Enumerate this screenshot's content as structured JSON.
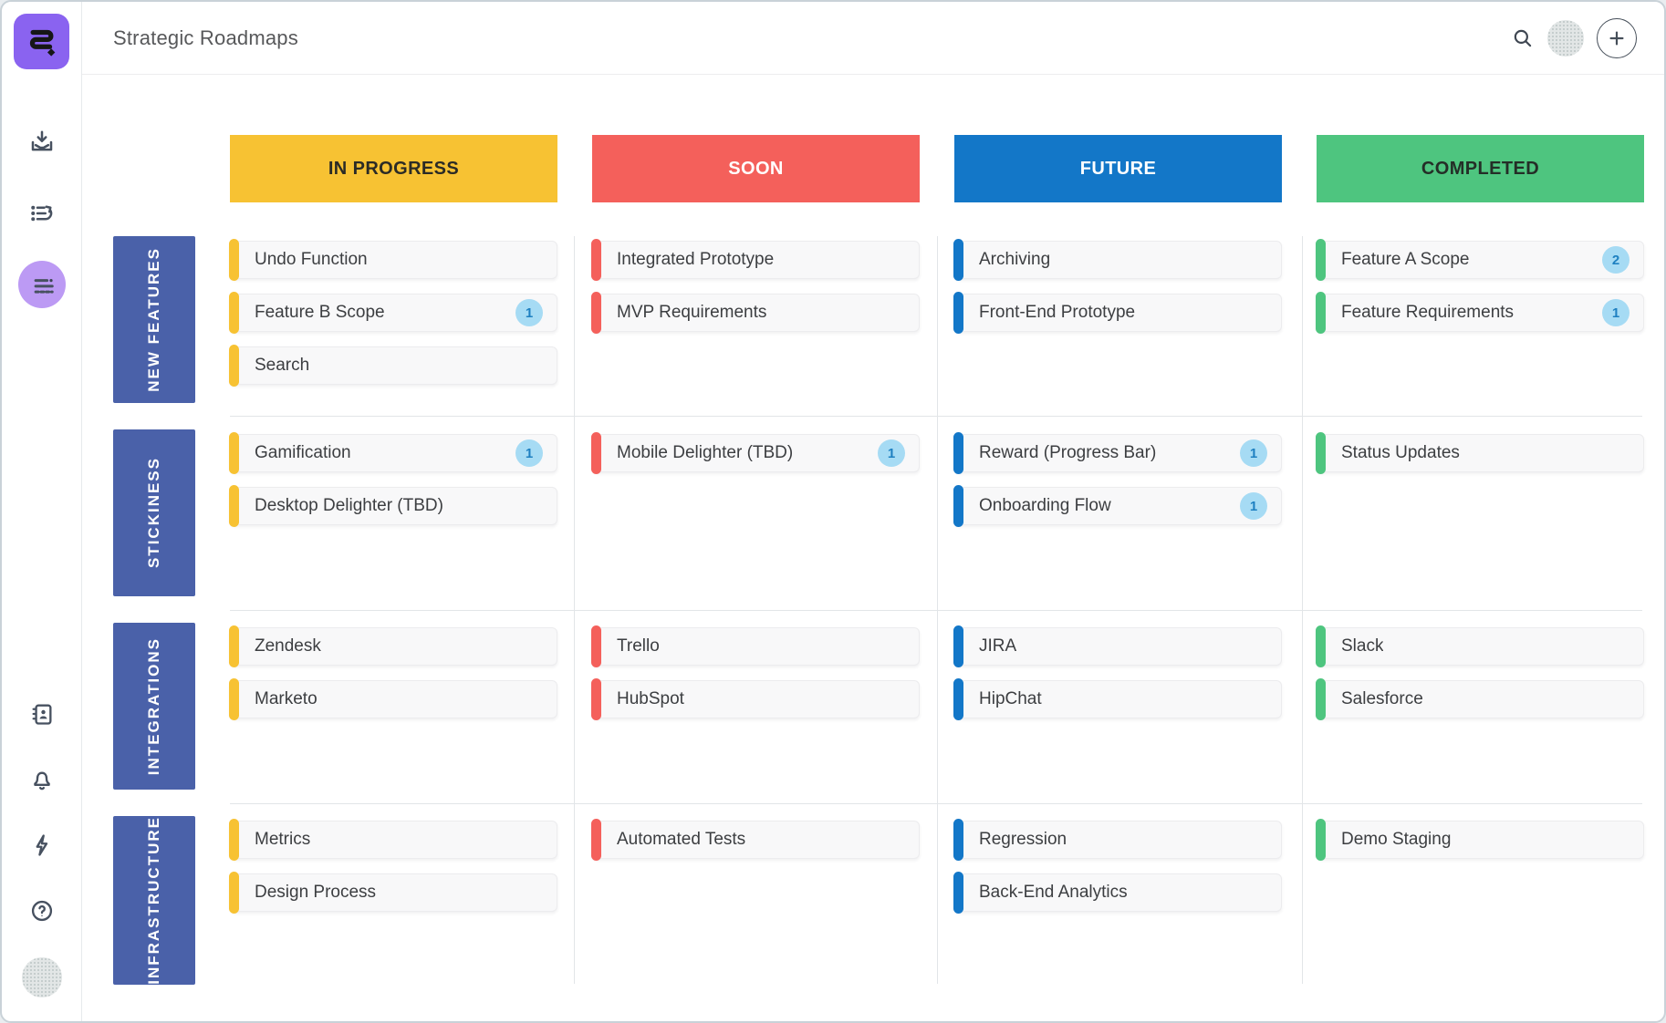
{
  "window": {
    "title": "Strategic Roadmaps"
  },
  "topbar": {
    "icons": [
      "search-icon",
      "user-avatar",
      "add-new-button"
    ]
  },
  "sidebar": {
    "top_icons": [
      "app-logo",
      "import-tray-icon",
      "backlog-list-icon",
      "roadmap-items-icon"
    ],
    "bottom_icons": [
      "contacts-icon",
      "notifications-bell-icon",
      "activity-bolt-icon",
      "help-icon",
      "user-avatar"
    ]
  },
  "colors": {
    "logo-purple": "#8A63F0",
    "active-purple": "#BC9AF4",
    "label-blue": "#4A61A9",
    "badge-bg": "#A6DBF4",
    "badge-text": "#1E80C1",
    "icon": "#475160",
    "card-bg": "#F8F8F9",
    "card-border": "#ECECEE",
    "card-text": "#3C3E41",
    "divider": "#E2E5E8",
    "title": "#57585A"
  },
  "board": {
    "columns": [
      {
        "label": "IN PROGRESS",
        "color": "#F7C233",
        "text": "#2B2B26"
      },
      {
        "label": "SOON",
        "color": "#F4605B",
        "text": "#FFFFFF"
      },
      {
        "label": "FUTURE",
        "color": "#1377C8",
        "text": "#FFFFFF"
      },
      {
        "label": "COMPLETED",
        "color": "#4EC57F",
        "text": "#242E27"
      }
    ],
    "rows": [
      {
        "label": "NEW FEATURES",
        "cells": [
          [
            {
              "title": "Undo Function"
            },
            {
              "title": "Feature B Scope",
              "badge": 1
            },
            {
              "title": "Search"
            }
          ],
          [
            {
              "title": "Integrated Prototype"
            },
            {
              "title": "MVP Requirements"
            }
          ],
          [
            {
              "title": "Archiving"
            },
            {
              "title": "Front-End Prototype"
            }
          ],
          [
            {
              "title": "Feature A Scope",
              "badge": 2
            },
            {
              "title": "Feature Requirements",
              "badge": 1
            }
          ]
        ]
      },
      {
        "label": "STICKINESS",
        "cells": [
          [
            {
              "title": "Gamification",
              "badge": 1
            },
            {
              "title": "Desktop Delighter (TBD)"
            }
          ],
          [
            {
              "title": "Mobile Delighter (TBD)",
              "badge": 1
            }
          ],
          [
            {
              "title": "Reward (Progress Bar)",
              "badge": 1
            },
            {
              "title": "Onboarding Flow",
              "badge": 1
            }
          ],
          [
            {
              "title": "Status Updates"
            }
          ]
        ]
      },
      {
        "label": "INTEGRATIONS",
        "cells": [
          [
            {
              "title": "Zendesk"
            },
            {
              "title": "Marketo"
            }
          ],
          [
            {
              "title": "Trello"
            },
            {
              "title": "HubSpot"
            }
          ],
          [
            {
              "title": "JIRA"
            },
            {
              "title": "HipChat"
            }
          ],
          [
            {
              "title": "Slack"
            },
            {
              "title": "Salesforce"
            }
          ]
        ]
      },
      {
        "label": "INFRASTRUCTURE",
        "cells": [
          [
            {
              "title": "Metrics"
            },
            {
              "title": "Design Process"
            }
          ],
          [
            {
              "title": "Automated Tests"
            }
          ],
          [
            {
              "title": "Regression"
            },
            {
              "title": "Back-End Analytics"
            }
          ],
          [
            {
              "title": "Demo Staging"
            }
          ]
        ]
      }
    ]
  }
}
